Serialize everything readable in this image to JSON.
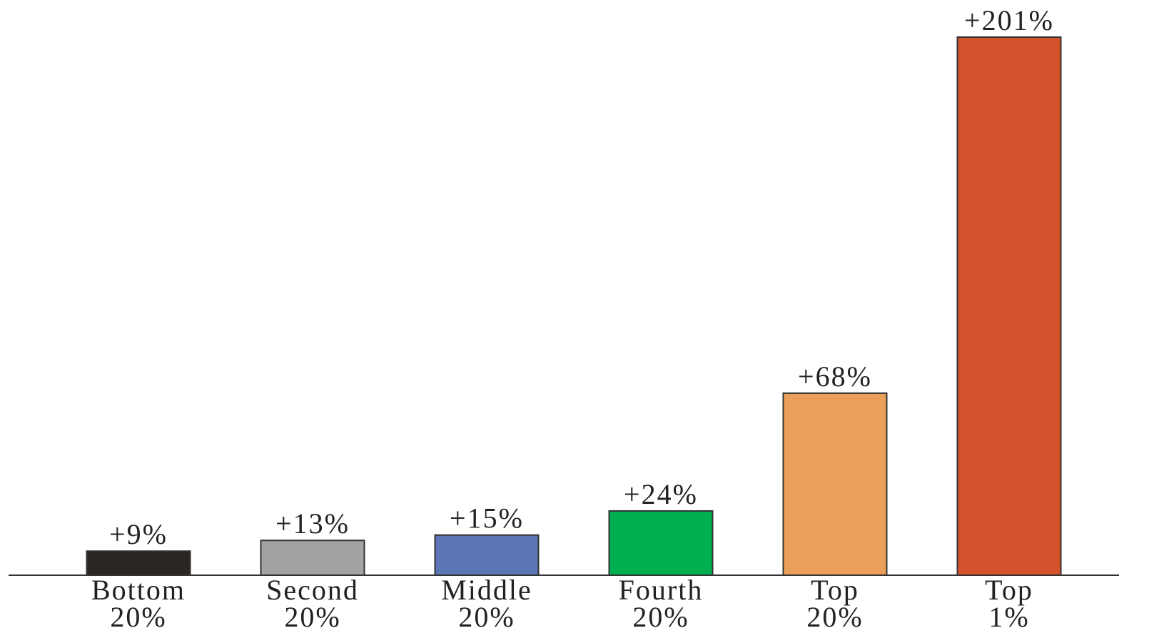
{
  "chart_data": {
    "type": "bar",
    "categories": [
      "Bottom\n20%",
      "Second\n20%",
      "Middle\n20%",
      "Fourth\n20%",
      "Top\n20%",
      "Top\n1%"
    ],
    "values": [
      9,
      13,
      15,
      24,
      68,
      201
    ],
    "value_labels": [
      "+9%",
      "+13%",
      "+15%",
      "+24%",
      "+68%",
      "+201%"
    ],
    "colors": [
      "#2a2622",
      "#a3a3a3",
      "#5b75b5",
      "#00b050",
      "#eba05a",
      "#d4532c"
    ]
  }
}
